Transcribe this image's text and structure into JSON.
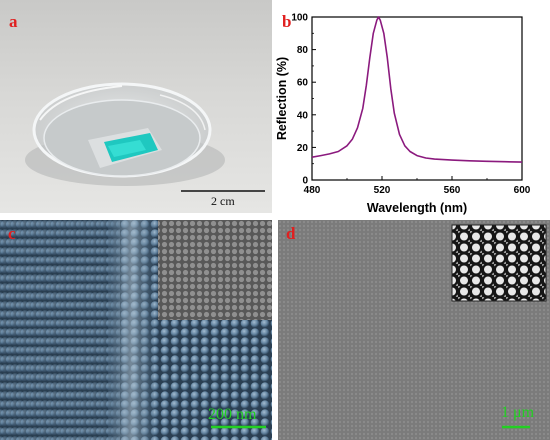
{
  "panels": {
    "a": {
      "label": "a",
      "scale_bar": "2 cm"
    },
    "b": {
      "label": "b"
    },
    "c": {
      "label": "c",
      "scale_bar": "200 nm"
    },
    "d": {
      "label": "d",
      "scale_bar": "1 μm"
    }
  },
  "colors": {
    "label": "#e02020",
    "curve": "#8b1a7e",
    "scale_sem": "#22d022",
    "film": "#1fc8c0"
  },
  "chart_data": {
    "type": "line",
    "xlabel": "Wavelength (nm)",
    "ylabel": "Reflection (%)",
    "xlim": [
      480,
      600
    ],
    "ylim": [
      0,
      100
    ],
    "xticks": [
      480,
      520,
      560,
      600
    ],
    "yticks": [
      0,
      20,
      40,
      60,
      80,
      100
    ],
    "grid": false,
    "series": [
      {
        "x": [
          480,
          485,
          490,
          495,
          500,
          503,
          506,
          509,
          511,
          513,
          515,
          517,
          518,
          519,
          521,
          523,
          525,
          527,
          530,
          533,
          536,
          540,
          545,
          550,
          560,
          570,
          580,
          590,
          600
        ],
        "y": [
          14,
          15,
          16,
          17.5,
          21,
          25,
          32,
          44,
          58,
          75,
          90,
          98,
          100,
          98,
          90,
          75,
          56,
          41,
          28,
          21,
          17.5,
          15,
          13.5,
          12.8,
          12.2,
          11.8,
          11.5,
          11.2,
          11
        ]
      }
    ]
  }
}
